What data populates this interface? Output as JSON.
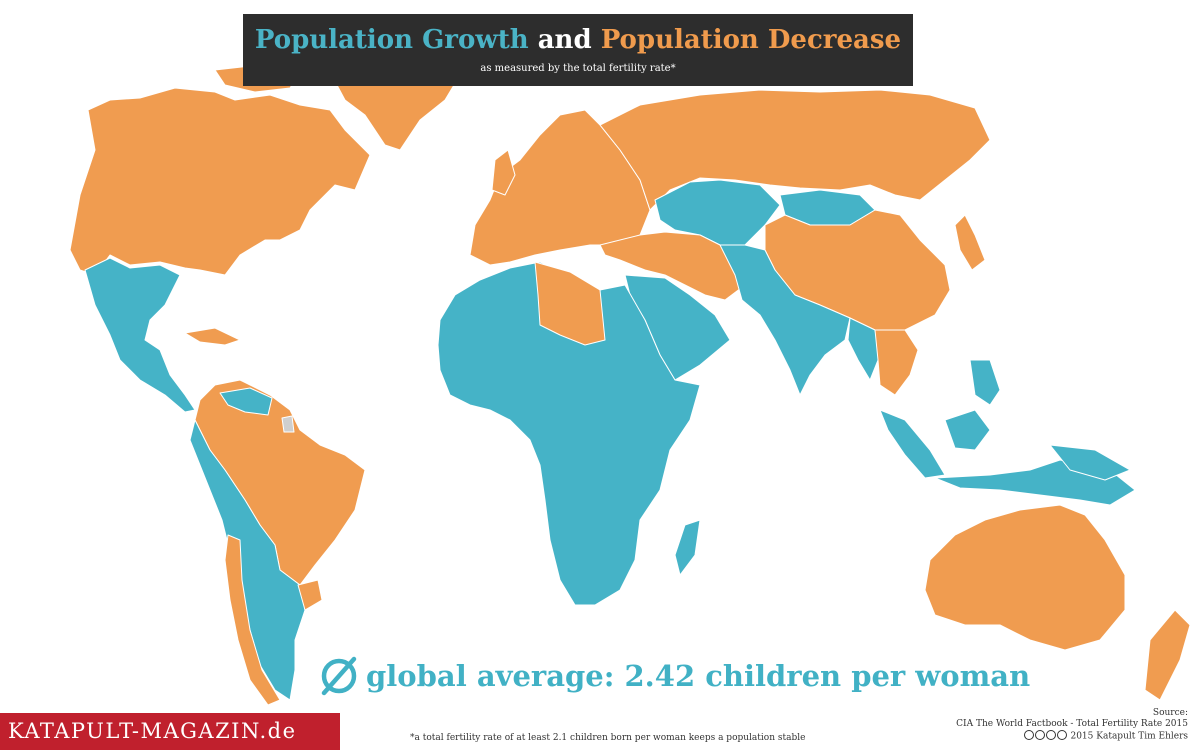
{
  "title": {
    "part1": "Population Growth",
    "part2": "and",
    "part3": "Population Decrease",
    "subtitle": "as measured by the total fertility rate*"
  },
  "colors": {
    "growth": "#45b3c7",
    "decrease": "#f09c50",
    "no_data": "#cfcfcf",
    "title_bg": "#2d2d2d",
    "brand_bg": "#c0202d"
  },
  "regions": [
    {
      "region": "North America (USA, Canada, Greenland)",
      "category": "decrease"
    },
    {
      "region": "Mexico & Central America",
      "category": "growth"
    },
    {
      "region": "Cuba & Caribbean",
      "category": "decrease"
    },
    {
      "region": "Colombia, Venezuela, Guianas",
      "category": "decrease"
    },
    {
      "region": "Brazil",
      "category": "decrease"
    },
    {
      "region": "Chile",
      "category": "decrease"
    },
    {
      "region": "Uruguay",
      "category": "decrease"
    },
    {
      "region": "Andean South America, Paraguay, Argentina",
      "category": "growth"
    },
    {
      "region": "Europe",
      "category": "decrease"
    },
    {
      "region": "Russia",
      "category": "decrease"
    },
    {
      "region": "Central Asia & Mongolia",
      "category": "growth"
    },
    {
      "region": "China, Korea, Japan",
      "category": "decrease"
    },
    {
      "region": "Middle East (Turkey, Iran)",
      "category": "decrease"
    },
    {
      "region": "Arabian Peninsula",
      "category": "growth"
    },
    {
      "region": "South Asia",
      "category": "growth"
    },
    {
      "region": "Thailand, Vietnam",
      "category": "decrease"
    },
    {
      "region": "Southeast Asian islands",
      "category": "growth"
    },
    {
      "region": "Africa",
      "category": "growth"
    },
    {
      "region": "Libya & Tunisia",
      "category": "decrease"
    },
    {
      "region": "Australia & New Zealand",
      "category": "decrease"
    },
    {
      "region": "French Guiana",
      "category": "no_data"
    }
  ],
  "average": {
    "icon": "empty-set-icon",
    "text": "global average: 2.42 children per woman"
  },
  "brand": "KATAPULT-MAGAZIN.de",
  "footnote": "*a total fertility rate of at least 2.1 children born per woman keeps a population stable",
  "source": {
    "label": "Source:",
    "line1": "CIA The World Factbook - Total Fertility Rate 2015",
    "line2": "2015 Katapult Tim Ehlers"
  }
}
